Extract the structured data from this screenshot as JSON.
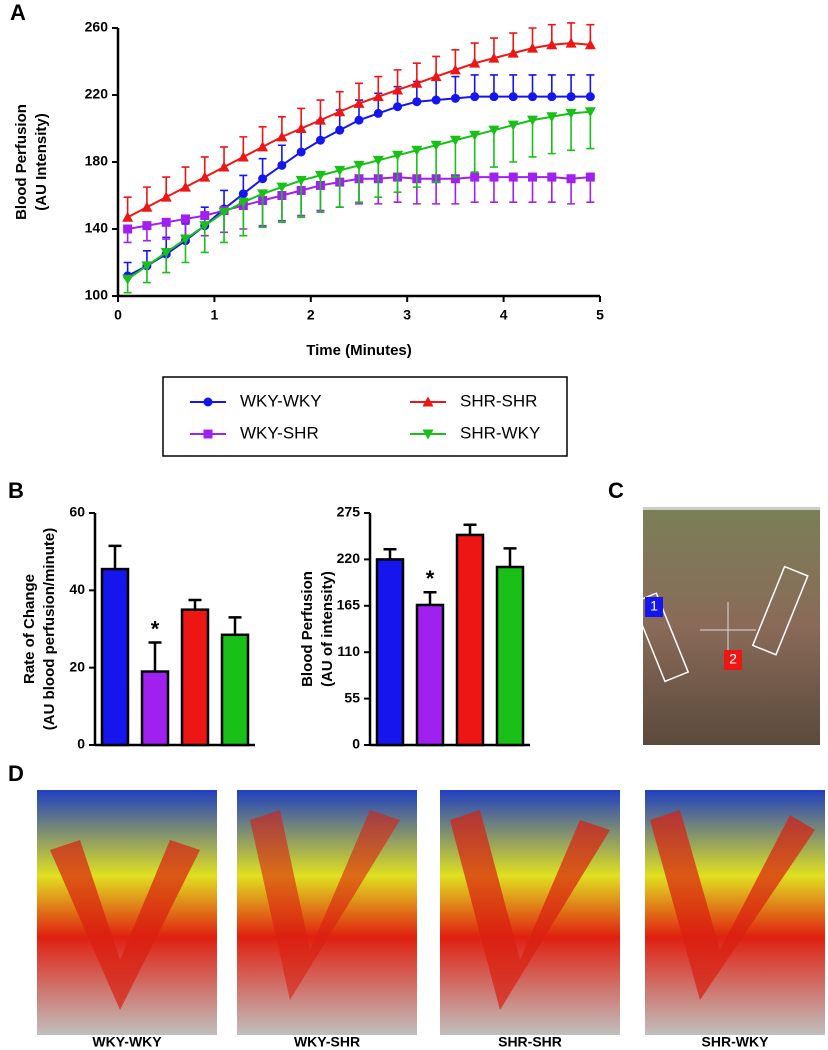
{
  "panel_labels": [
    "A",
    "B",
    "C",
    "D"
  ],
  "chart_data": [
    {
      "type": "line",
      "x_label": "Time (Minutes)",
      "y_label": [
        "Blood Perfusion",
        "(AU Intensity)"
      ],
      "x": [
        0.1,
        0.3,
        0.5,
        0.7,
        0.9,
        1.1,
        1.3,
        1.5,
        1.7,
        1.9,
        2.1,
        2.3,
        2.5,
        2.7,
        2.9,
        3.1,
        3.3,
        3.5,
        3.7,
        3.9,
        4.1,
        4.3,
        4.5,
        4.7,
        4.9
      ],
      "xlim": [
        0,
        5
      ],
      "xticks": [
        0,
        1,
        2,
        3,
        4,
        5
      ],
      "ylim": [
        100,
        260
      ],
      "yticks": [
        100,
        140,
        180,
        220,
        260
      ],
      "series": [
        {
          "name": "WKY-WKY",
          "color": "#1515ee",
          "marker": "circle",
          "error_side": "up",
          "values": [
            112,
            118,
            125,
            133,
            142,
            152,
            161,
            170,
            178,
            186,
            193,
            199,
            205,
            209,
            213,
            216,
            217,
            218,
            219,
            219,
            219,
            219,
            219,
            219,
            219
          ],
          "errors": [
            8,
            9,
            10,
            10,
            11,
            11,
            11,
            12,
            12,
            12,
            12,
            12,
            12,
            12,
            12,
            12,
            12,
            13,
            13,
            13,
            13,
            13,
            13,
            13,
            13
          ]
        },
        {
          "name": "WKY-SHR",
          "color": "#a020f0",
          "marker": "square",
          "error_side": "down",
          "values": [
            140,
            142,
            144,
            146,
            148,
            151,
            154,
            157,
            160,
            163,
            166,
            168,
            170,
            170,
            171,
            170,
            170,
            170,
            171,
            171,
            171,
            171,
            171,
            170,
            171
          ],
          "errors": [
            8,
            9,
            10,
            11,
            12,
            13,
            14,
            15,
            15,
            15,
            15,
            15,
            15,
            15,
            15,
            15,
            15,
            15,
            15,
            15,
            15,
            15,
            15,
            15,
            15
          ]
        },
        {
          "name": "SHR-SHR",
          "color": "#ee1515",
          "marker": "triangle-up",
          "error_side": "up",
          "values": [
            147,
            153,
            159,
            165,
            171,
            177,
            183,
            189,
            195,
            200,
            205,
            210,
            215,
            219,
            223,
            227,
            231,
            235,
            239,
            242,
            245,
            248,
            250,
            251,
            250
          ],
          "errors": [
            12,
            12,
            12,
            12,
            12,
            12,
            12,
            12,
            12,
            12,
            12,
            12,
            12,
            12,
            12,
            12,
            12,
            12,
            12,
            12,
            12,
            12,
            12,
            12,
            12
          ]
        },
        {
          "name": "SHR-WKY",
          "color": "#18c018",
          "marker": "triangle-down",
          "error_side": "down",
          "values": [
            110,
            118,
            126,
            134,
            142,
            150,
            156,
            161,
            165,
            169,
            172,
            175,
            178,
            181,
            184,
            187,
            190,
            193,
            196,
            199,
            202,
            205,
            207,
            209,
            210
          ],
          "errors": [
            8,
            10,
            12,
            14,
            16,
            18,
            20,
            20,
            21,
            22,
            22,
            22,
            22,
            22,
            22,
            22,
            22,
            22,
            22,
            22,
            22,
            22,
            22,
            22,
            22
          ]
        }
      ]
    },
    {
      "type": "bar",
      "y_label": [
        "Rate of Change",
        "(AU blood perfusion/minute)"
      ],
      "categories": [
        null,
        null,
        null,
        null
      ],
      "colors": [
        "#1515ee",
        "#a020f0",
        "#ee1515",
        "#18c018"
      ],
      "values": [
        45.5,
        19,
        35,
        28.5
      ],
      "errors": [
        6,
        7.5,
        2.5,
        4.5
      ],
      "value_annotations": [
        null,
        "*",
        null,
        null
      ],
      "ylim": [
        0,
        60
      ],
      "yticks": [
        0,
        20,
        40,
        60
      ]
    },
    {
      "type": "bar",
      "y_label": [
        "Blood  Perfusion",
        "(AU of intensity)"
      ],
      "categories": [
        null,
        null,
        null,
        null
      ],
      "colors": [
        "#1515ee",
        "#a020f0",
        "#ee1515",
        "#18c018"
      ],
      "values": [
        220,
        166,
        249,
        211
      ],
      "errors": [
        12,
        15,
        12,
        22
      ],
      "value_annotations": [
        null,
        "*",
        null,
        null
      ],
      "ylim": [
        0,
        275
      ],
      "yticks": [
        0,
        55,
        110,
        165,
        220,
        275
      ]
    }
  ],
  "roi_labels": [
    "1",
    "2"
  ],
  "image_labels": [
    "WKY-WKY",
    "WKY-SHR",
    "SHR-SHR",
    "SHR-WKY"
  ]
}
